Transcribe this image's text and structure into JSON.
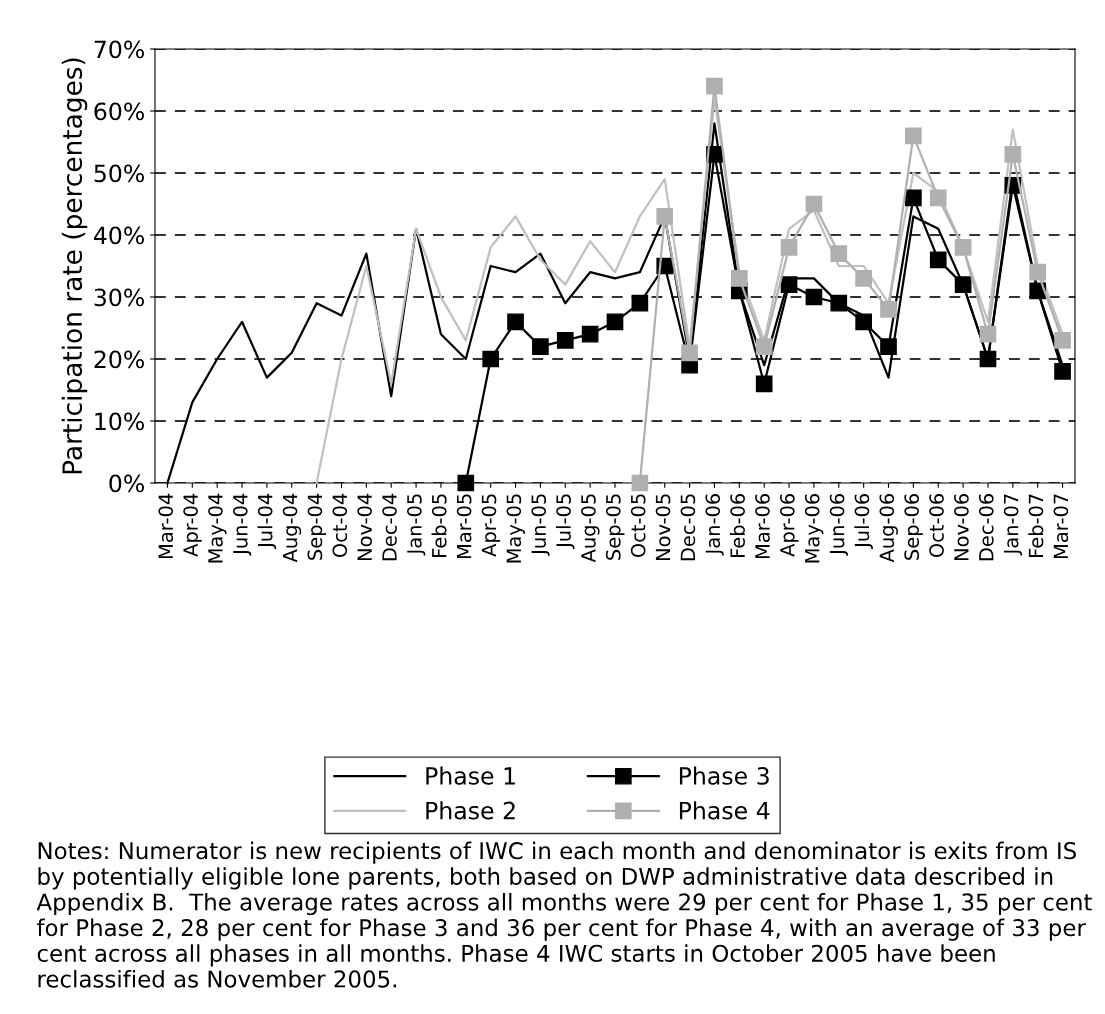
{
  "chart_data": {
    "type": "line",
    "ylabel": "Participation rate (percentages)",
    "categories": [
      "Mar-04",
      "Apr-04",
      "May-04",
      "Jun-04",
      "Jul-04",
      "Aug-04",
      "Sep-04",
      "Oct-04",
      "Nov-04",
      "Dec-04",
      "Jan-05",
      "Feb-05",
      "Mar-05",
      "Apr-05",
      "May-05",
      "Jun-05",
      "Jul-05",
      "Aug-05",
      "Sep-05",
      "Oct-05",
      "Nov-05",
      "Dec-05",
      "Jan-06",
      "Feb-06",
      "Mar-06",
      "Apr-06",
      "May-06",
      "Jun-06",
      "Jul-06",
      "Aug-06",
      "Sep-06",
      "Oct-06",
      "Nov-06",
      "Dec-06",
      "Jan-07",
      "Feb-07",
      "Mar-07"
    ],
    "series": [
      {
        "name": "Phase 1",
        "color": "#000000",
        "marker": "none",
        "values": [
          0,
          13,
          20,
          26,
          17,
          21,
          29,
          27,
          37,
          14,
          41,
          24,
          20,
          35,
          34,
          37,
          29,
          34,
          33,
          34,
          43,
          20,
          58,
          31,
          19,
          33,
          33,
          29,
          27,
          17,
          43,
          41,
          32,
          20,
          49,
          31,
          19
        ]
      },
      {
        "name": "Phase 2",
        "color": "#c0c0c0",
        "marker": "none",
        "values": [
          null,
          null,
          null,
          null,
          null,
          null,
          0,
          20,
          35,
          16,
          41,
          30,
          23,
          38,
          43,
          36,
          32,
          39,
          34,
          43,
          49,
          22,
          62,
          34,
          23,
          41,
          44,
          35,
          35,
          29,
          50,
          47,
          38,
          26,
          57,
          35,
          24
        ]
      },
      {
        "name": "Phase 3",
        "color": "#000000",
        "marker": "square",
        "values": [
          null,
          null,
          null,
          null,
          null,
          null,
          null,
          null,
          null,
          null,
          null,
          null,
          0,
          20,
          26,
          22,
          23,
          24,
          26,
          29,
          35,
          19,
          53,
          31,
          16,
          32,
          30,
          29,
          26,
          22,
          46,
          36,
          32,
          20,
          48,
          31,
          18
        ]
      },
      {
        "name": "Phase 4",
        "color": "#b0b0b0",
        "marker": "square",
        "values": [
          null,
          null,
          null,
          null,
          null,
          null,
          null,
          null,
          null,
          null,
          null,
          null,
          null,
          null,
          null,
          null,
          null,
          null,
          null,
          0,
          43,
          21,
          64,
          33,
          22,
          38,
          45,
          37,
          33,
          28,
          56,
          46,
          38,
          24,
          53,
          34,
          23
        ]
      }
    ],
    "ylim": [
      0,
      70
    ],
    "yticks": [
      {
        "value": 0,
        "label": "0%"
      },
      {
        "value": 10,
        "label": "10%"
      },
      {
        "value": 20,
        "label": "20%"
      },
      {
        "value": 30,
        "label": "30%"
      },
      {
        "value": 40,
        "label": "40%"
      },
      {
        "value": 50,
        "label": "50%"
      },
      {
        "value": 60,
        "label": "60%"
      },
      {
        "value": 70,
        "label": "70%"
      }
    ],
    "grid": "y",
    "legend": "bottom",
    "line_style": "solid",
    "annotations": [
      "Notes: Numerator is new recipients of IWC in each month and denominator is exits from IS by potentially eligible lone parents, both based on DWP administrative data described in Appendix B.  The average rates across all months were 29 per cent for Phase 1, 35 per cent for Phase 2, 28 per cent for Phase 3 and 36 per cent for Phase 4, with an average of 33 per cent across all phases in all months. Phase 4 IWC starts in October 2005 have been reclassified as November 2005."
    ]
  }
}
